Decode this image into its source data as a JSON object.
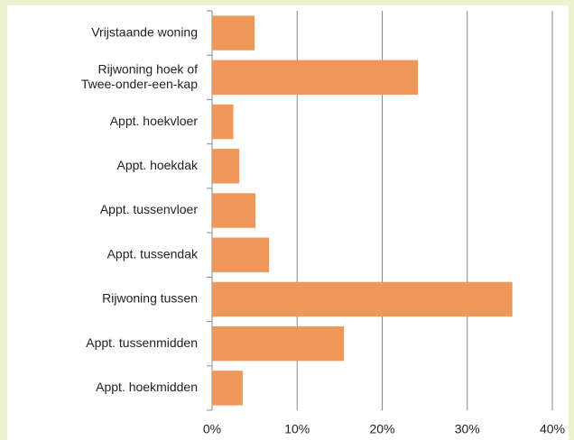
{
  "chart_data": {
    "type": "bar",
    "orientation": "horizontal",
    "categories": [
      "Vrijstaande woning",
      "Rijwoning hoek of\nTwee-onder-een-kap",
      "Appt. hoekvloer",
      "Appt. hoekdak",
      "Appt. tussenvloer",
      "Appt. tussendak",
      "Rijwoning tussen",
      "Appt. tussenmidden",
      "Appt. hoekmidden"
    ],
    "values": [
      5.0,
      24.2,
      2.5,
      3.2,
      5.1,
      6.7,
      35.3,
      15.5,
      3.6
    ],
    "color": "#f0975a",
    "xlim": [
      0,
      40
    ],
    "xticks": [
      {
        "value": 0,
        "label": "0%"
      },
      {
        "value": 10,
        "label": "10%"
      },
      {
        "value": 20,
        "label": "20%"
      },
      {
        "value": 30,
        "label": "30%"
      },
      {
        "value": 40,
        "label": "40%"
      }
    ],
    "grid": true
  }
}
